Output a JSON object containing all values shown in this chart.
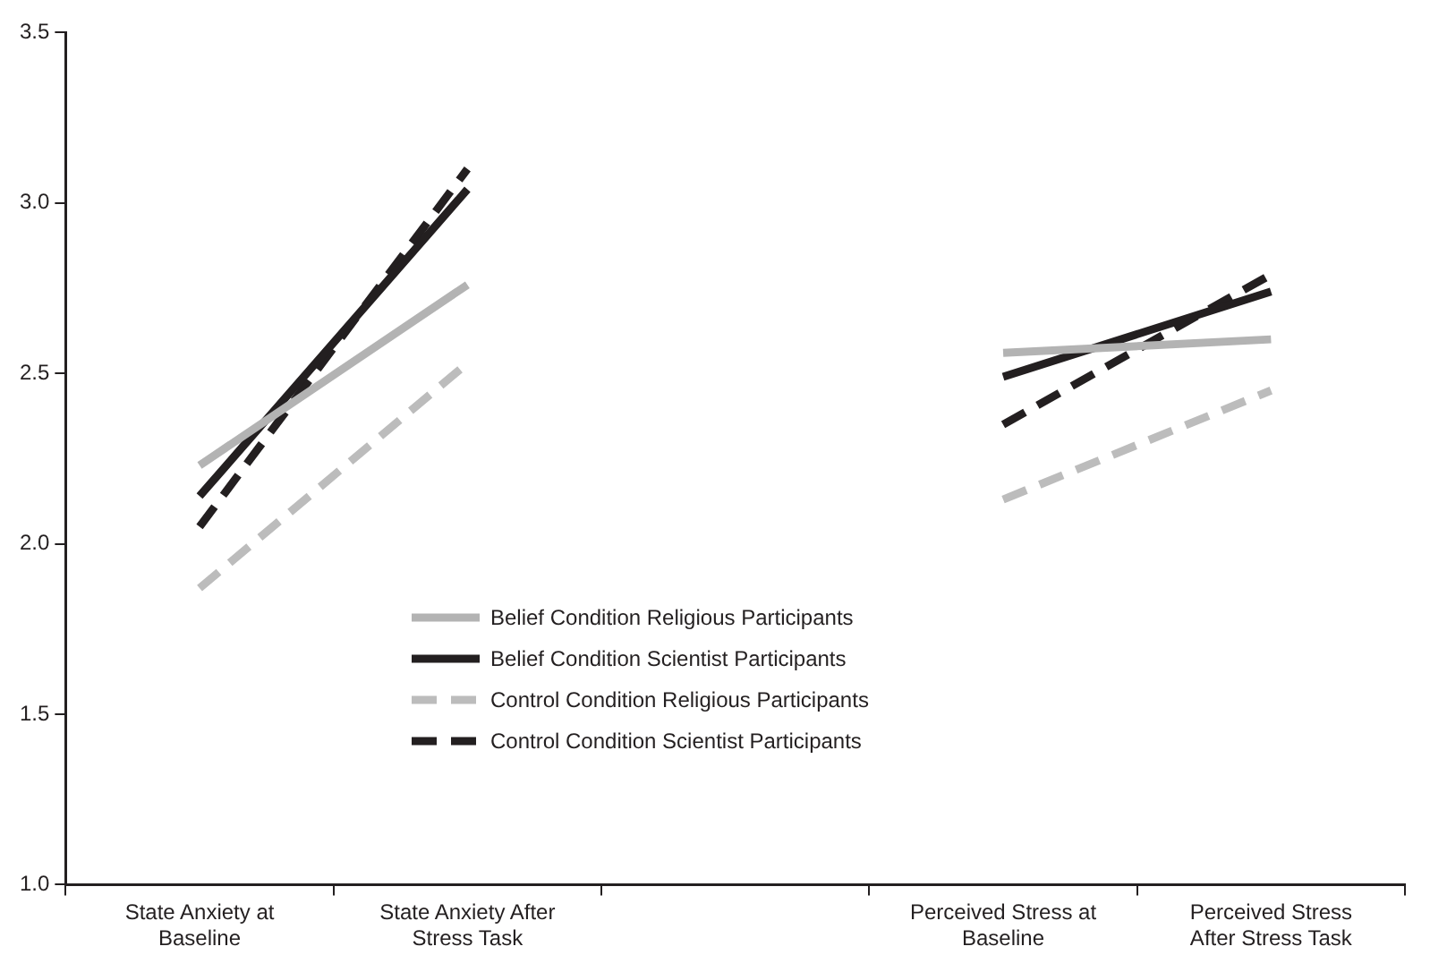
{
  "chart_data": {
    "type": "line",
    "categories": [
      "State Anxiety at Baseline",
      "State Anxiety After Stress Task",
      null,
      "Perceived Stress at Baseline",
      "Perceived Stress After Stress Task"
    ],
    "series": [
      {
        "name": "Belief Condition Religious Participants",
        "color": "#b3b3b3",
        "line_style": "solid",
        "values": [
          2.23,
          2.76,
          null,
          2.56,
          2.6
        ]
      },
      {
        "name": "Belief Condition Scientist Participants",
        "color": "#231f20",
        "line_style": "solid",
        "values": [
          2.14,
          3.04,
          null,
          2.49,
          2.74
        ]
      },
      {
        "name": "Control Condition Religious Participants",
        "color": "#bcbcbc",
        "line_style": "dashed",
        "values": [
          1.87,
          2.53,
          null,
          2.13,
          2.45
        ]
      },
      {
        "name": "Control Condition Scientist Participants",
        "color": "#231f20",
        "line_style": "dashed",
        "values": [
          2.05,
          3.1,
          null,
          2.35,
          2.79
        ]
      }
    ],
    "ylim": [
      1.0,
      3.5
    ],
    "yticks": [
      {
        "value": 1.0,
        "label": "1.0"
      },
      {
        "value": 1.5,
        "label": "1.5"
      },
      {
        "value": 2.0,
        "label": "2.0"
      },
      {
        "value": 2.5,
        "label": "2.5"
      },
      {
        "value": 3.0,
        "label": "3.0"
      },
      {
        "value": 3.5,
        "label": "3.5"
      }
    ],
    "grid": false,
    "legend": "bottom",
    "marker": "none"
  }
}
